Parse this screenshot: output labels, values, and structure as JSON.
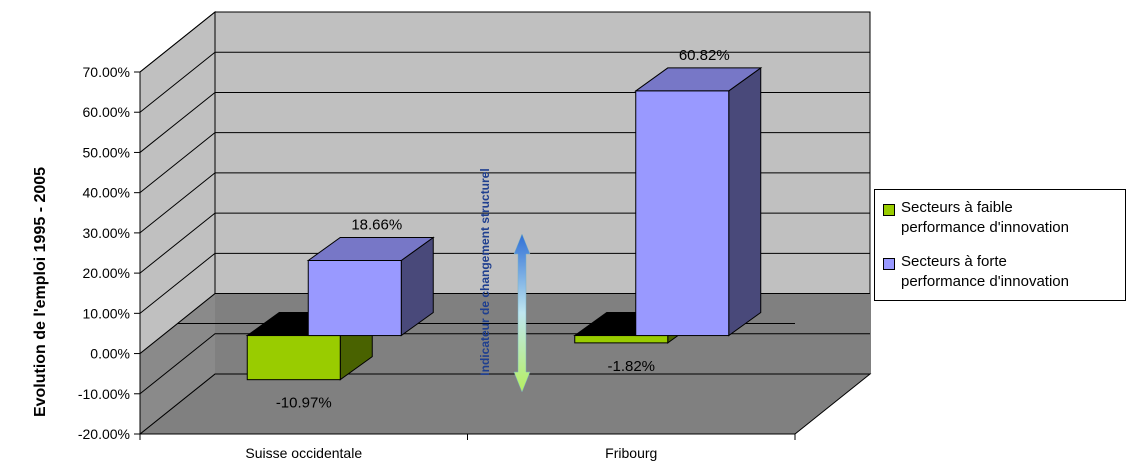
{
  "chart_data": {
    "type": "bar",
    "style": "3d-clustered-column",
    "categories": [
      "Suisse occidentale",
      "Fribourg"
    ],
    "series": [
      {
        "name": "Secteurs à faible performance d'innovation",
        "color": "#99cc00",
        "values": [
          -10.97,
          -1.82
        ]
      },
      {
        "name": "Secteurs à forte performance d'innovation",
        "color": "#9999ff",
        "values": [
          18.66,
          60.82
        ]
      }
    ],
    "data_labels": [
      [
        "-10.97%",
        "-1.82%"
      ],
      [
        "18.66%",
        "60.82%"
      ]
    ],
    "ylabel": "Evolution de l'emploi 1995 - 2005",
    "ylim": [
      -20,
      70
    ],
    "yticks": [
      "-20.00%",
      "-10.00%",
      "0.00%",
      "10.00%",
      "20.00%",
      "30.00%",
      "40.00%",
      "50.00%",
      "60.00%",
      "70.00%"
    ],
    "grid": true,
    "legend_position": "right",
    "legend_lines": [
      [
        "Secteurs à faible",
        "performance d'innovation"
      ],
      [
        "Secteurs à forte",
        "performance d'innovation"
      ]
    ],
    "annotation": "Indicateur de changement structurel"
  }
}
